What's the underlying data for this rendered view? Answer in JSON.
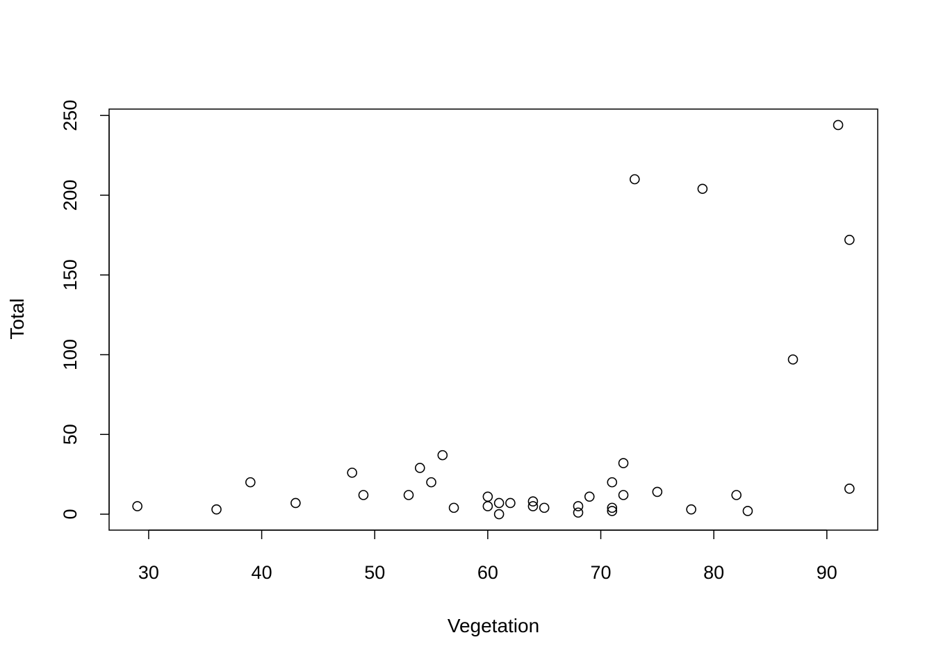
{
  "chart_data": {
    "type": "scatter",
    "title": "",
    "xlabel": "Vegetation",
    "ylabel": "Total",
    "xlim": [
      26.5,
      94.5
    ],
    "ylim": [
      -10,
      254
    ],
    "x_ticks": [
      30,
      40,
      50,
      60,
      70,
      80,
      90
    ],
    "y_ticks": [
      0,
      50,
      100,
      150,
      200,
      250
    ],
    "grid": false,
    "legend": "none",
    "marker": "open-circle",
    "points": [
      {
        "x": 29,
        "y": 5
      },
      {
        "x": 36,
        "y": 3
      },
      {
        "x": 39,
        "y": 20
      },
      {
        "x": 43,
        "y": 7
      },
      {
        "x": 48,
        "y": 26
      },
      {
        "x": 49,
        "y": 12
      },
      {
        "x": 53,
        "y": 12
      },
      {
        "x": 54,
        "y": 29
      },
      {
        "x": 55,
        "y": 20
      },
      {
        "x": 56,
        "y": 37
      },
      {
        "x": 57,
        "y": 4
      },
      {
        "x": 60,
        "y": 11
      },
      {
        "x": 60,
        "y": 5
      },
      {
        "x": 61,
        "y": 7
      },
      {
        "x": 61,
        "y": 0
      },
      {
        "x": 62,
        "y": 7
      },
      {
        "x": 64,
        "y": 8
      },
      {
        "x": 64,
        "y": 5
      },
      {
        "x": 65,
        "y": 4
      },
      {
        "x": 68,
        "y": 5
      },
      {
        "x": 68,
        "y": 1
      },
      {
        "x": 69,
        "y": 11
      },
      {
        "x": 71,
        "y": 20
      },
      {
        "x": 71,
        "y": 4
      },
      {
        "x": 71,
        "y": 2
      },
      {
        "x": 72,
        "y": 32
      },
      {
        "x": 72,
        "y": 12
      },
      {
        "x": 73,
        "y": 210
      },
      {
        "x": 75,
        "y": 14
      },
      {
        "x": 78,
        "y": 3
      },
      {
        "x": 79,
        "y": 204
      },
      {
        "x": 82,
        "y": 12
      },
      {
        "x": 83,
        "y": 2
      },
      {
        "x": 87,
        "y": 97
      },
      {
        "x": 91,
        "y": 244
      },
      {
        "x": 92,
        "y": 172
      },
      {
        "x": 92,
        "y": 16
      }
    ]
  }
}
